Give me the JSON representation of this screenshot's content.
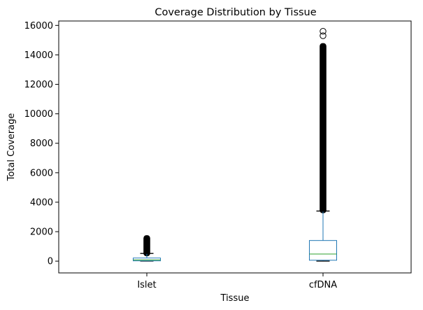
{
  "chart_data": {
    "type": "boxplot",
    "title": "Coverage Distribution by Tissue",
    "xlabel": "Tissue",
    "ylabel": "Total Coverage",
    "categories": [
      "Islet",
      "cfDNA"
    ],
    "ylim": [
      -800,
      16300
    ],
    "yticks": [
      0,
      2000,
      4000,
      6000,
      8000,
      10000,
      12000,
      14000,
      16000
    ],
    "ytick_labels": [
      "0",
      "2000",
      "4000",
      "6000",
      "8000",
      "10000",
      "12000",
      "14000",
      "16000"
    ],
    "grid": false,
    "box_color": "#1f77b4",
    "median_color": "#2ca02c",
    "flier_color": "#000000",
    "boxes": [
      {
        "name": "Islet",
        "min": 0,
        "q1": 20,
        "median": 80,
        "q3": 210,
        "whisker_high": 520,
        "outlier_range": [
          530,
          1560
        ],
        "outliers_top": []
      },
      {
        "name": "cfDNA",
        "min": 0,
        "q1": 60,
        "median": 480,
        "q3": 1400,
        "whisker_high": 3400,
        "outlier_range": [
          3450,
          14600
        ],
        "outliers_top": [
          15300,
          15600
        ]
      }
    ]
  }
}
